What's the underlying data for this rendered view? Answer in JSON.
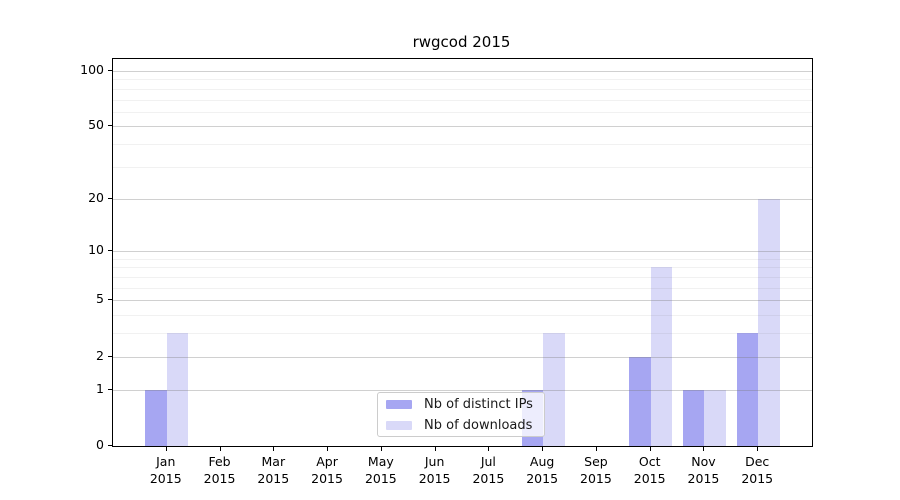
{
  "title": "rwgcod 2015",
  "legend": {
    "items": [
      {
        "label": "Nb of distinct IPs",
        "color": "#a6a6f2"
      },
      {
        "label": "Nb of downloads",
        "color": "#d9d9f8"
      }
    ]
  },
  "chart_data": {
    "type": "bar",
    "title": "rwgcod 2015",
    "categories": [
      "Jan",
      "Feb",
      "Mar",
      "Apr",
      "May",
      "Jun",
      "Jul",
      "Aug",
      "Sep",
      "Oct",
      "Nov",
      "Dec"
    ],
    "x_tick_second_line": "2015",
    "series": [
      {
        "name": "Nb of distinct IPs",
        "color": "#a6a6f2",
        "values": [
          1,
          0,
          0,
          0,
          0,
          0,
          0,
          1,
          0,
          2,
          1,
          3
        ]
      },
      {
        "name": "Nb of downloads",
        "color": "#d9d9f8",
        "values": [
          3,
          0,
          0,
          0,
          0,
          0,
          0,
          3,
          0,
          8,
          1,
          20
        ]
      }
    ],
    "xlabel": "",
    "ylabel": "",
    "yscale": "log1p",
    "ylim": [
      0,
      116
    ],
    "yticks": [
      0,
      1,
      2,
      5,
      10,
      20,
      50,
      100
    ],
    "yticks_minor": [
      3,
      4,
      6,
      7,
      8,
      9,
      30,
      40,
      60,
      70,
      80,
      90
    ],
    "grid": true,
    "legend_position": "lower-center"
  }
}
